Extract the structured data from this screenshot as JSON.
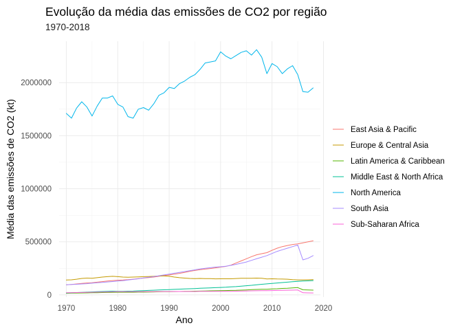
{
  "chart_data": {
    "type": "line",
    "title": "Evolução da média das emissões de CO2 por região",
    "subtitle": "1970-2018",
    "xlabel": "Ano",
    "ylabel": "Média das emissões de CO2 (kt)",
    "xlim": [
      1968.6,
      2019.4
    ],
    "ylim": [
      -20000,
      2390000
    ],
    "x_ticks": [
      1970,
      1980,
      1990,
      2000,
      2010,
      2020
    ],
    "x_tick_labels": [
      "1970",
      "1980",
      "1990",
      "2000",
      "2010",
      "2020"
    ],
    "y_ticks": [
      0,
      500000,
      1000000,
      1500000,
      2000000
    ],
    "y_tick_labels": [
      "0",
      "500000",
      "1000000",
      "1500000",
      "2000000"
    ],
    "grid": true,
    "legend_position": "right",
    "x": [
      1970,
      1971,
      1972,
      1973,
      1974,
      1975,
      1976,
      1977,
      1978,
      1979,
      1980,
      1981,
      1982,
      1983,
      1984,
      1985,
      1986,
      1987,
      1988,
      1989,
      1990,
      1991,
      1992,
      1993,
      1994,
      1995,
      1996,
      1997,
      1998,
      1999,
      2000,
      2001,
      2002,
      2003,
      2004,
      2005,
      2006,
      2007,
      2008,
      2009,
      2010,
      2011,
      2012,
      2013,
      2014,
      2015,
      2016,
      2017,
      2018
    ],
    "series": [
      {
        "name": "East Asia & Pacific",
        "color": "#F8766D",
        "values": [
          95000,
          98000,
          103000,
          108000,
          112000,
          115000,
          120000,
          125000,
          130000,
          135000,
          138000,
          140000,
          143000,
          148000,
          153000,
          158000,
          163000,
          168000,
          175000,
          182000,
          188000,
          195000,
          203000,
          212000,
          222000,
          230000,
          238000,
          243000,
          248000,
          255000,
          262000,
          268000,
          280000,
          300000,
          320000,
          340000,
          360000,
          378000,
          388000,
          398000,
          420000,
          440000,
          455000,
          465000,
          475000,
          480000,
          490000,
          500000,
          510000
        ]
      },
      {
        "name": "Europe & Central Asia",
        "color": "#C49A00",
        "values": [
          140000,
          142000,
          148000,
          155000,
          158000,
          157000,
          162000,
          168000,
          172000,
          175000,
          172000,
          168000,
          166000,
          168000,
          170000,
          172000,
          173000,
          175000,
          178000,
          178000,
          176000,
          168000,
          162000,
          158000,
          155000,
          153000,
          155000,
          153000,
          153000,
          151000,
          152000,
          152000,
          152000,
          154000,
          156000,
          156000,
          157000,
          158000,
          157000,
          150000,
          152000,
          150000,
          149000,
          148000,
          144000,
          141000,
          141000,
          142000,
          143000
        ]
      },
      {
        "name": "Latin America & Caribbean",
        "color": "#53B400",
        "values": [
          15000,
          16000,
          17000,
          18000,
          19000,
          20000,
          21000,
          22000,
          23000,
          24000,
          25000,
          25000,
          25000,
          25000,
          26000,
          26000,
          27000,
          28000,
          29000,
          30000,
          30000,
          31000,
          32000,
          33000,
          34000,
          35000,
          36000,
          37000,
          38000,
          39000,
          40000,
          41000,
          42000,
          43000,
          45000,
          47000,
          49000,
          51000,
          53000,
          53000,
          56000,
          58000,
          61000,
          63000,
          66000,
          69000,
          48000,
          46000,
          45000
        ]
      },
      {
        "name": "Middle East & North Africa",
        "color": "#00C094",
        "values": [
          18000,
          20000,
          22000,
          24000,
          26000,
          28000,
          30000,
          32000,
          33000,
          35000,
          34000,
          34000,
          35000,
          36000,
          38000,
          40000,
          42000,
          44000,
          46000,
          48000,
          50000,
          52000,
          54000,
          56000,
          58000,
          60000,
          62000,
          64000,
          66000,
          68000,
          70000,
          72000,
          75000,
          78000,
          82000,
          86000,
          90000,
          95000,
          100000,
          104000,
          108000,
          112000,
          116000,
          120000,
          124000,
          128000,
          130000,
          132000,
          135000
        ]
      },
      {
        "name": "North America",
        "color": "#00B6EB",
        "values": [
          1710000,
          1665000,
          1760000,
          1820000,
          1770000,
          1685000,
          1780000,
          1855000,
          1855000,
          1875000,
          1795000,
          1770000,
          1680000,
          1665000,
          1750000,
          1765000,
          1740000,
          1800000,
          1880000,
          1905000,
          1955000,
          1945000,
          1990000,
          2015000,
          2050000,
          2075000,
          2125000,
          2185000,
          2195000,
          2205000,
          2290000,
          2250000,
          2225000,
          2255000,
          2285000,
          2300000,
          2260000,
          2310000,
          2240000,
          2085000,
          2180000,
          2150000,
          2085000,
          2130000,
          2160000,
          2075000,
          1915000,
          1910000,
          1950000
        ]
      },
      {
        "name": "South Asia",
        "color": "#A58AFF",
        "values": [
          95000,
          98000,
          100000,
          103000,
          106000,
          110000,
          114000,
          118000,
          122000,
          126000,
          130000,
          134000,
          140000,
          146000,
          152000,
          160000,
          166000,
          172000,
          180000,
          188000,
          196000,
          204000,
          212000,
          220000,
          228000,
          236000,
          244000,
          250000,
          256000,
          262000,
          265000,
          270000,
          278000,
          288000,
          298000,
          310000,
          325000,
          340000,
          355000,
          370000,
          390000,
          410000,
          425000,
          440000,
          455000,
          470000,
          330000,
          345000,
          370000
        ]
      },
      {
        "name": "Sub-Saharan Africa",
        "color": "#FB61D7",
        "values": [
          20000,
          21000,
          22000,
          23000,
          24000,
          25000,
          26000,
          27000,
          28000,
          29000,
          30000,
          30000,
          30000,
          30000,
          30000,
          31000,
          31000,
          31000,
          32000,
          32000,
          32000,
          32000,
          32000,
          32000,
          32000,
          32000,
          33000,
          33000,
          33000,
          33000,
          34000,
          34000,
          34000,
          35000,
          36000,
          37000,
          38000,
          39000,
          40000,
          40000,
          41000,
          42000,
          43000,
          44000,
          45000,
          46000,
          20000,
          19000,
          18000
        ]
      }
    ]
  }
}
